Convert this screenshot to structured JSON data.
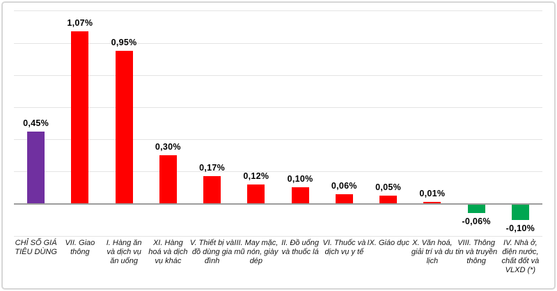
{
  "chart_data": {
    "type": "bar",
    "title": "",
    "xlabel": "",
    "ylabel": "",
    "unit": "%",
    "ylim": [
      -0.2,
      1.2
    ],
    "grid_step": 0.2,
    "grid_on": true,
    "legend": "none",
    "decimal_separator": ",",
    "categories": [
      "CHỈ SỐ GIÁ TIÊU DÙNG",
      "VII. Giao thông",
      "I. Hàng ăn và dịch vụ ăn uống",
      "XI. Hàng hoá và dịch vụ khác",
      "V. Thiết bị và đồ dùng gia đình",
      "III. May mặc, mũ nón, giày dép",
      "II. Đồ uống và thuốc lá",
      "VI. Thuốc và dịch vụ y tế",
      "IX. Giáo dục",
      "X. Văn hoá, giải trí và du lịch",
      "VIII. Thông tin và truyền thông",
      "IV. Nhà ở, điện nước, chất đốt và VLXD (*)"
    ],
    "values": [
      0.45,
      1.07,
      0.95,
      0.3,
      0.17,
      0.12,
      0.1,
      0.06,
      0.05,
      0.01,
      -0.06,
      -0.1
    ],
    "value_labels": [
      "0,45%",
      "1,07%",
      "0,95%",
      "0,30%",
      "0,17%",
      "0,12%",
      "0,10%",
      "0,06%",
      "0,05%",
      "0,01%",
      "-0,06%",
      "-0,10%"
    ],
    "bar_colors": [
      "#7030A0",
      "#FF0000",
      "#FF0000",
      "#FF0000",
      "#FF0000",
      "#FF0000",
      "#FF0000",
      "#FF0000",
      "#FF0000",
      "#FF0000",
      "#00A651",
      "#00A651"
    ]
  },
  "style": {
    "highlight_color": "#7030A0",
    "positive_color": "#FF0000",
    "negative_color": "#00A651",
    "gridline_color": "#e4e4e4",
    "axis_color": "#9c9c9c"
  }
}
